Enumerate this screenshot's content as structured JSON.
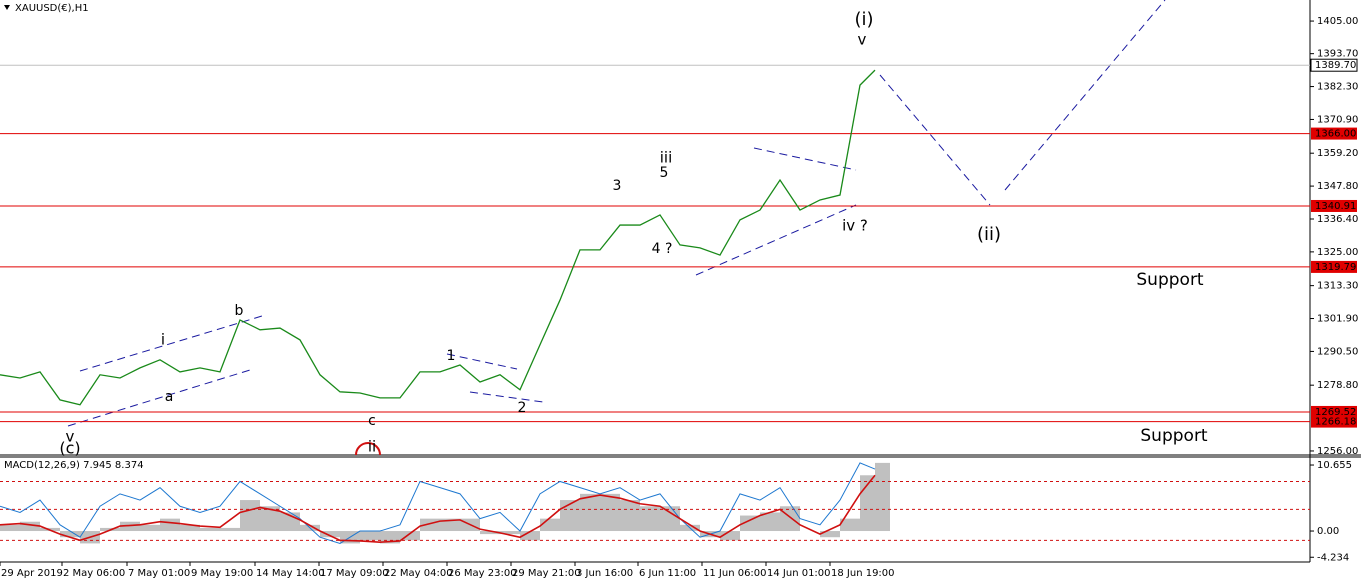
{
  "chart_data": [
    {
      "type": "line",
      "title": "XAUUSD(€),H1",
      "x": [
        0,
        20,
        40,
        60,
        80,
        100,
        120,
        140,
        160,
        180,
        200,
        220,
        240,
        260,
        280,
        300,
        320,
        340,
        360,
        380,
        400,
        420,
        440,
        460,
        480,
        500,
        520,
        540,
        560,
        580,
        600,
        620,
        640,
        660,
        680,
        700,
        720,
        740,
        760,
        780,
        800,
        820,
        840,
        860,
        875
      ],
      "series": [
        {
          "color": "#1a8a1a",
          "values": [
            1282.4,
            1281.3,
            1283.4,
            1273.7,
            1272.0,
            1282.4,
            1281.3,
            1284.8,
            1287.6,
            1283.4,
            1284.8,
            1283.4,
            1301.4,
            1298.0,
            1298.6,
            1294.5,
            1282.4,
            1276.5,
            1276.1,
            1274.4,
            1274.4,
            1283.4,
            1283.4,
            1285.8,
            1279.9,
            1282.4,
            1277.2,
            1292.8,
            1308.3,
            1325.7,
            1325.7,
            1334.3,
            1334.3,
            1337.8,
            1327.4,
            1326.4,
            1323.9,
            1336.1,
            1339.5,
            1349.9,
            1339.5,
            1343.0,
            1344.7,
            1382.8,
            1388.0
          ]
        }
      ],
      "xlim": [
        0,
        1310
      ],
      "xticks": [
        {
          "value": 0,
          "label": "29 Apr 2019"
        },
        {
          "value": 62,
          "label": "2 May 06:00"
        },
        {
          "value": 127,
          "label": "7 May 01:00"
        },
        {
          "value": 190,
          "label": "9 May 19:00"
        },
        {
          "value": 255,
          "label": "14 May 14:00"
        },
        {
          "value": 319,
          "label": "17 May 09:00"
        },
        {
          "value": 383,
          "label": "22 May 04:00"
        },
        {
          "value": 447,
          "label": "26 May 23:00"
        },
        {
          "value": 511,
          "label": "29 May 21:00"
        },
        {
          "value": 575,
          "label": "3 Jun 16:00"
        },
        {
          "value": 638,
          "label": "6 Jun 11:00"
        },
        {
          "value": 702,
          "label": "11 Jun 06:00"
        },
        {
          "value": 766,
          "label": "14 Jun 01:00"
        },
        {
          "value": 830,
          "label": "18 Jun 19:00"
        }
      ],
      "ylim": [
        1254.6,
        1412.3
      ],
      "yticks": [
        {
          "value": 1405,
          "label": "1405.00"
        },
        {
          "value": 1393.7,
          "label": "1393.70"
        },
        {
          "value": 1382.3,
          "label": "1382.30"
        },
        {
          "value": 1370.9,
          "label": "1370.90"
        },
        {
          "value": 1359.2,
          "label": "1359.20"
        },
        {
          "value": 1347.8,
          "label": "1347.80"
        },
        {
          "value": 1336.4,
          "label": "1336.40"
        },
        {
          "value": 1325,
          "label": "1325.00"
        },
        {
          "value": 1313.3,
          "label": "1313.30"
        },
        {
          "value": 1301.9,
          "label": "1301.90"
        },
        {
          "value": 1290.5,
          "label": "1290.50"
        },
        {
          "value": 1278.8,
          "label": "1278.80"
        },
        {
          "value": 1256,
          "label": "1256.00"
        }
      ],
      "hlines": [
        {
          "value": 1366,
          "label": "1366.00",
          "color": "#e00000"
        },
        {
          "value": 1340.91,
          "label": "1340.91",
          "color": "#e00000"
        },
        {
          "value": 1319.79,
          "label": "1319.79",
          "color": "#e00000"
        },
        {
          "value": 1269.52,
          "label": "1269.52",
          "color": "#e00000"
        },
        {
          "value": 1266.18,
          "label": "1266.18",
          "color": "#e00000"
        },
        {
          "value": 1389.7,
          "label": "1389.70",
          "color": "#c0c0c0"
        }
      ],
      "annotations": [
        {
          "text": "(i)",
          "color": "#1a1aa0"
        },
        {
          "text": "v",
          "color": "#e020e0"
        },
        {
          "text": "iii",
          "color": "#e020e0"
        },
        {
          "text": "3",
          "color": "#000000"
        },
        {
          "text": "5",
          "color": "#000000"
        },
        {
          "text": "4 ?",
          "color": "#000000"
        },
        {
          "text": "iv ?",
          "color": "#e020e0"
        },
        {
          "text": "(ii)",
          "color": "#1a1aa0"
        },
        {
          "text": "i",
          "color": "#e020e0"
        },
        {
          "text": "b",
          "color": "#000000"
        },
        {
          "text": "a",
          "color": "#000000"
        },
        {
          "text": "c",
          "color": "#000000"
        },
        {
          "text": "ii",
          "color": "#e020e0"
        },
        {
          "text": "1",
          "color": "#000000"
        },
        {
          "text": "2",
          "color": "#000000"
        },
        {
          "text": "v",
          "color": "#e020e0"
        },
        {
          "text": "(c)",
          "color": "#1a1aa0"
        },
        {
          "text": "Support",
          "color": "#d01010"
        },
        {
          "text": "Support",
          "color": "#d01010"
        }
      ]
    },
    {
      "type": "macd",
      "title": "MACD(12,26,9) 7.945 8.374",
      "x": [
        0,
        20,
        40,
        60,
        80,
        100,
        120,
        140,
        160,
        180,
        200,
        220,
        240,
        260,
        280,
        300,
        320,
        340,
        360,
        380,
        400,
        420,
        440,
        460,
        480,
        500,
        520,
        540,
        560,
        580,
        600,
        620,
        640,
        660,
        680,
        700,
        720,
        740,
        760,
        780,
        800,
        820,
        840,
        860,
        875
      ],
      "histogram": {
        "color": "#c0c0c0",
        "values": [
          1,
          1.5,
          0.5,
          -1,
          -2,
          0.5,
          1.5,
          1,
          2,
          1,
          0.5,
          0.5,
          5,
          4,
          3,
          1,
          -1,
          -2,
          -1.5,
          -2,
          -1.5,
          2,
          2,
          2,
          -0.5,
          -0.5,
          -1.5,
          2,
          5,
          6,
          6,
          5,
          4,
          4,
          1,
          -1,
          -1.5,
          2.5,
          3,
          4,
          0,
          -1,
          2,
          9,
          11
        ]
      },
      "signal": {
        "color": "#d01010",
        "values": [
          1,
          1.2,
          0.8,
          -0.5,
          -1.5,
          -0.5,
          0.8,
          1,
          1.5,
          1.2,
          0.8,
          0.6,
          3,
          3.8,
          3.2,
          1.8,
          0,
          -1.5,
          -1.6,
          -1.8,
          -1.6,
          0.8,
          1.6,
          1.8,
          0.3,
          -0.3,
          -1,
          0.8,
          3.5,
          5.2,
          5.8,
          5.3,
          4.4,
          4,
          2,
          0,
          -1,
          1,
          2.5,
          3.5,
          1,
          -0.5,
          1,
          6,
          9
        ]
      },
      "oscillator": {
        "color": "#1e78d0",
        "values": [
          4,
          3,
          5,
          1,
          -1,
          4,
          6,
          5,
          7,
          4,
          3,
          4,
          8,
          6,
          4,
          2,
          -1,
          -2,
          0,
          0,
          1,
          8,
          7,
          6,
          2,
          3,
          0,
          6,
          8,
          7,
          6,
          7,
          5,
          6,
          2,
          -1,
          0,
          6,
          5,
          7,
          2,
          1,
          5,
          11,
          10
        ]
      },
      "xlim": [
        0,
        1310
      ],
      "ylim": [
        -5.0,
        11.95
      ],
      "yticks": [
        10.655,
        {
          "value": 0,
          "label": "0.00"
        },
        -4.234
      ],
      "levels": [
        8,
        3.5,
        -1.5
      ]
    }
  ]
}
